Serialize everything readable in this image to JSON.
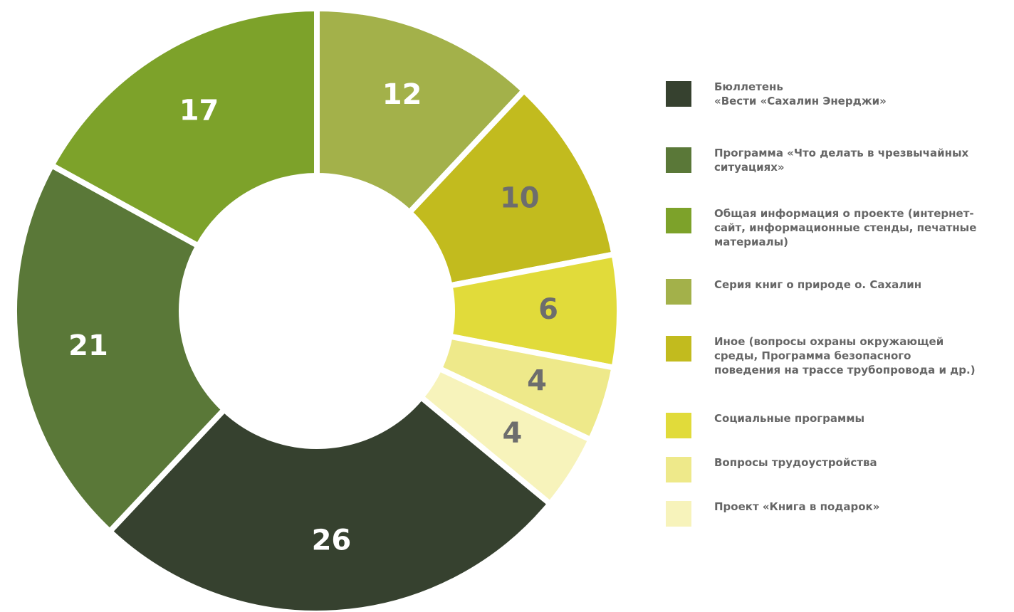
{
  "chart_data": {
    "type": "donut",
    "categories": [
      "Бюллетень\n«Вести «Сахалин Энерджи»",
      "Программа «Что делать в чрезвычайных\nситуациях»",
      "Общая информация о проекте (интернет-\nсайт, информационные стенды, печатные\nматериалы)",
      "Серия книг о природе о. Сахалин",
      "Иное (вопросы охраны окружающей\nсреды, Программа безопасного\nповедения на трассе трубопровода и др.)",
      "Социальные программы",
      "Вопросы трудоустройства",
      "Проект «Книга в подарок»"
    ],
    "values": [
      26,
      21,
      17,
      12,
      10,
      6,
      4,
      4
    ],
    "colors": [
      "#36412f",
      "#5a7838",
      "#7da22a",
      "#a3b14a",
      "#c2bb1e",
      "#e1db3a",
      "#eee98a",
      "#f7f3bb"
    ],
    "label_colors": [
      "#ffffff",
      "#ffffff",
      "#ffffff",
      "#ffffff",
      "#6d6d6d",
      "#6d6d6d",
      "#6d6d6d",
      "#6d6d6d"
    ]
  }
}
